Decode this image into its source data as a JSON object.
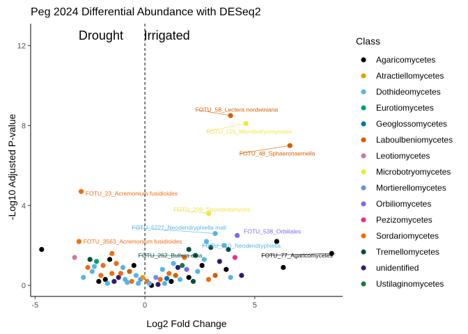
{
  "chart_data": {
    "type": "scatter",
    "title": "Peg 2024 Differential Abundance with DESeq2",
    "xlabel": "Log2 Fold Change",
    "ylabel": "-Log10 Adjusted P-value",
    "xlim": [
      -5.2,
      9.0
    ],
    "ylim": [
      -0.55,
      13.1
    ],
    "xticks": [
      -5,
      0,
      5
    ],
    "yticks": [
      0,
      4,
      8,
      12
    ],
    "grid": false,
    "vline_x": 0,
    "region_labels": [
      {
        "text": "Drought",
        "x": -2.0,
        "y": 12.3
      },
      {
        "text": "Irrigated",
        "x": 1.0,
        "y": 12.3
      }
    ],
    "legend": {
      "title": "Class",
      "position": "right"
    },
    "classes": [
      {
        "name": "Agaricomycetes",
        "color": "#000000"
      },
      {
        "name": "Atractiellomycetes",
        "color": "#E69F00"
      },
      {
        "name": "Dothideomycetes",
        "color": "#56B4E9"
      },
      {
        "name": "Eurotiomycetes",
        "color": "#009E73"
      },
      {
        "name": "Geoglossomycetes",
        "color": "#0072B2"
      },
      {
        "name": "Laboulbeniomycetes",
        "color": "#D55E00"
      },
      {
        "name": "Leotiomycetes",
        "color": "#CC79A7"
      },
      {
        "name": "Microbotryomycetes",
        "color": "#F0E442"
      },
      {
        "name": "Mortierellomycetes",
        "color": "#6495ED"
      },
      {
        "name": "Orbiliomycetes",
        "color": "#7B68EE"
      },
      {
        "name": "Pezizomycetes",
        "color": "#E6318C"
      },
      {
        "name": "Sordariomycetes",
        "color": "#F26B0F"
      },
      {
        "name": "Tremellomycetes",
        "color": "#004D40"
      },
      {
        "name": "unidentified",
        "color": "#2E1A7A"
      },
      {
        "name": "Ustilaginomycetes",
        "color": "#1B7A3A"
      }
    ],
    "annotations": [
      {
        "text": "FOTU_58_Lectera nordwiniana",
        "class": "Laboulbeniomycetes",
        "x": 3.9,
        "y": 8.5,
        "tx": 2.3,
        "ty": 8.8
      },
      {
        "text": "FOTU_215_Microbotryomycetes",
        "class": "Microbotryomycetes",
        "x": 4.6,
        "y": 8.1,
        "tx": 2.8,
        "ty": 7.7
      },
      {
        "text": "FOTU_48_Sphaeronaemella",
        "class": "Laboulbeniomycetes",
        "x": 6.6,
        "y": 7.0,
        "tx": 4.3,
        "ty": 6.6
      },
      {
        "text": "FOTU_23_Acremonium fusidioides",
        "class": "Sordariomycetes",
        "x": -2.9,
        "y": 4.7,
        "tx": -2.7,
        "ty": 4.6
      },
      {
        "text": "FOTU_209_Sporobolomyces",
        "class": "Microbotryomycetes",
        "x": 2.9,
        "y": 3.6,
        "tx": 1.3,
        "ty": 3.8
      },
      {
        "text": "FOTU_5227_Neodendryphiella mali",
        "class": "Dothideomycetes",
        "x": 3.2,
        "y": 2.6,
        "tx": -0.6,
        "ty": 2.9
      },
      {
        "text": "FOTU_538_Orbiliales",
        "class": "Orbiliomycetes",
        "x": 4.2,
        "y": 2.5,
        "tx": 4.5,
        "ty": 2.7
      },
      {
        "text": "FOTU_3563_Acremonium fusidioides",
        "class": "Sordariomycetes",
        "x": -3.0,
        "y": 2.2,
        "tx": -2.8,
        "ty": 2.2
      },
      {
        "text": "FOTU_410_Neodendryphiella",
        "class": "Dothideomycetes",
        "x": 3.6,
        "y": 2.0,
        "tx": 2.6,
        "ty": 2.0
      },
      {
        "text": "FOTU_262_Bullera alba",
        "class": "Tremellomycetes",
        "x": 2.3,
        "y": 1.5,
        "tx": -0.3,
        "ty": 1.5
      },
      {
        "text": "FOTU_77_Agaricomycetes",
        "class": "Agaricomycetes",
        "x": 8.5,
        "y": 1.6,
        "tx": 5.3,
        "ty": 1.5
      }
    ],
    "points": [
      {
        "x": -4.7,
        "y": 1.8,
        "class": "Agaricomycetes"
      },
      {
        "x": -2.9,
        "y": 4.7,
        "class": "Sordariomycetes"
      },
      {
        "x": -3.0,
        "y": 2.2,
        "class": "Sordariomycetes"
      },
      {
        "x": 3.9,
        "y": 8.5,
        "class": "Laboulbeniomycetes"
      },
      {
        "x": 4.6,
        "y": 8.1,
        "class": "Microbotryomycetes"
      },
      {
        "x": 6.6,
        "y": 7.0,
        "class": "Laboulbeniomycetes"
      },
      {
        "x": 2.9,
        "y": 3.6,
        "class": "Microbotryomycetes"
      },
      {
        "x": 3.2,
        "y": 2.6,
        "class": "Dothideomycetes"
      },
      {
        "x": 4.2,
        "y": 2.5,
        "class": "Orbiliomycetes"
      },
      {
        "x": 3.6,
        "y": 2.0,
        "class": "Dothideomycetes"
      },
      {
        "x": 8.5,
        "y": 1.6,
        "class": "Agaricomycetes"
      },
      {
        "x": 6.0,
        "y": 2.2,
        "class": "Agaricomycetes"
      },
      {
        "x": 6.3,
        "y": 0.9,
        "class": "Agaricomycetes"
      },
      {
        "x": 2.3,
        "y": 1.5,
        "class": "Tremellomycetes"
      },
      {
        "x": 2.0,
        "y": 1.8,
        "class": "Tremellomycetes"
      },
      {
        "x": 2.8,
        "y": 2.2,
        "class": "Dothideomycetes"
      },
      {
        "x": 3.0,
        "y": 1.9,
        "class": "Tremellomycetes"
      },
      {
        "x": 3.8,
        "y": 1.8,
        "class": "Tremellomycetes"
      },
      {
        "x": 4.1,
        "y": 1.4,
        "class": "Pezizomycetes"
      },
      {
        "x": 3.4,
        "y": 1.2,
        "class": "unidentified"
      },
      {
        "x": 2.6,
        "y": 1.0,
        "class": "Agaricomycetes"
      },
      {
        "x": 1.8,
        "y": 1.4,
        "class": "Sordariomycetes"
      },
      {
        "x": 3.7,
        "y": 0.8,
        "class": "Agaricomycetes"
      },
      {
        "x": 4.4,
        "y": 0.5,
        "class": "unidentified"
      },
      {
        "x": 3.2,
        "y": 0.5,
        "class": "Laboulbeniomycetes"
      },
      {
        "x": 2.4,
        "y": 0.7,
        "class": "Dothideomycetes"
      },
      {
        "x": 1.5,
        "y": 0.9,
        "class": "unidentified"
      },
      {
        "x": 2.0,
        "y": 0.4,
        "class": "Agaricomycetes"
      },
      {
        "x": 1.6,
        "y": 0.3,
        "class": "Dothideomycetes"
      },
      {
        "x": 3.9,
        "y": 0.4,
        "class": "Dothideomycetes"
      },
      {
        "x": 2.9,
        "y": 0.3,
        "class": "Sordariomycetes"
      },
      {
        "x": 1.2,
        "y": 0.2,
        "class": "Agaricomycetes"
      },
      {
        "x": 0.9,
        "y": 0.1,
        "class": "Dothideomycetes"
      },
      {
        "x": 0.6,
        "y": 0.05,
        "class": "unidentified"
      },
      {
        "x": 0.3,
        "y": 0.0,
        "class": "Agaricomycetes"
      },
      {
        "x": 1.1,
        "y": 0.6,
        "class": "Sordariomycetes"
      },
      {
        "x": 1.9,
        "y": 0.8,
        "class": "Orbiliomycetes"
      },
      {
        "x": 2.2,
        "y": 0.2,
        "class": "Tremellomycetes"
      },
      {
        "x": 0.5,
        "y": 0.4,
        "class": "Mortierellomycetes"
      },
      {
        "x": 1.4,
        "y": 0.5,
        "class": "Laboulbeniomycetes"
      },
      {
        "x": 2.7,
        "y": 1.3,
        "class": "Dothideomycetes"
      },
      {
        "x": 0.7,
        "y": 0.3,
        "class": "Sordariomycetes"
      },
      {
        "x": -0.3,
        "y": 0.1,
        "class": "Dothideomycetes"
      },
      {
        "x": -0.6,
        "y": 0.2,
        "class": "Sordariomycetes"
      },
      {
        "x": -0.9,
        "y": 0.3,
        "class": "Dothideomycetes"
      },
      {
        "x": -1.2,
        "y": 0.4,
        "class": "unidentified"
      },
      {
        "x": -1.5,
        "y": 0.6,
        "class": "Sordariomycetes"
      },
      {
        "x": -1.8,
        "y": 0.3,
        "class": "Agaricomycetes"
      },
      {
        "x": -2.1,
        "y": 0.2,
        "class": "Agaricomycetes"
      },
      {
        "x": -2.4,
        "y": 0.7,
        "class": "Dothideomycetes"
      },
      {
        "x": -2.6,
        "y": 0.9,
        "class": "Sordariomycetes"
      },
      {
        "x": -2.2,
        "y": 1.2,
        "class": "Eurotiomycetes"
      },
      {
        "x": -2.5,
        "y": 1.3,
        "class": "Tremellomycetes"
      },
      {
        "x": -3.2,
        "y": 1.4,
        "class": "Leotiomycetes"
      },
      {
        "x": -1.9,
        "y": 1.0,
        "class": "Sordariomycetes"
      },
      {
        "x": -1.6,
        "y": 1.3,
        "class": "Agaricomycetes"
      },
      {
        "x": -1.3,
        "y": 1.1,
        "class": "Sordariomycetes"
      },
      {
        "x": -1.0,
        "y": 0.9,
        "class": "Dothideomycetes"
      },
      {
        "x": -0.7,
        "y": 0.7,
        "class": "Laboulbeniomycetes"
      },
      {
        "x": -0.4,
        "y": 0.5,
        "class": "Dothideomycetes"
      },
      {
        "x": -0.2,
        "y": 0.3,
        "class": "Mortierellomycetes"
      },
      {
        "x": -1.7,
        "y": 0.1,
        "class": "Dothideomycetes"
      },
      {
        "x": -2.0,
        "y": 0.5,
        "class": "Sordariomycetes"
      },
      {
        "x": -2.8,
        "y": 0.4,
        "class": "Dothideomycetes"
      },
      {
        "x": -1.4,
        "y": 0.2,
        "class": "unidentified"
      },
      {
        "x": -1.1,
        "y": 0.6,
        "class": "Sordariomycetes"
      },
      {
        "x": -0.8,
        "y": 0.15,
        "class": "Dothideomycetes"
      },
      {
        "x": -2.3,
        "y": 0.95,
        "class": "Dothideomycetes"
      },
      {
        "x": -1.5,
        "y": 1.6,
        "class": "Sordariomycetes"
      },
      {
        "x": -0.5,
        "y": 1.0,
        "class": "Agaricomycetes"
      },
      {
        "x": 0.1,
        "y": 0.2,
        "class": "Sordariomycetes"
      },
      {
        "x": 0.2,
        "y": 0.1,
        "class": "Dothideomycetes"
      },
      {
        "x": -0.1,
        "y": 0.4,
        "class": "Atractiellomycetes"
      },
      {
        "x": 1.3,
        "y": 1.1,
        "class": "Dothideomycetes"
      },
      {
        "x": 1.7,
        "y": 1.0,
        "class": "Ustilaginomycetes"
      },
      {
        "x": 0.8,
        "y": 0.8,
        "class": "Dothideomycetes"
      },
      {
        "x": 1.0,
        "y": 0.35,
        "class": "Geoglossomycetes"
      }
    ]
  }
}
